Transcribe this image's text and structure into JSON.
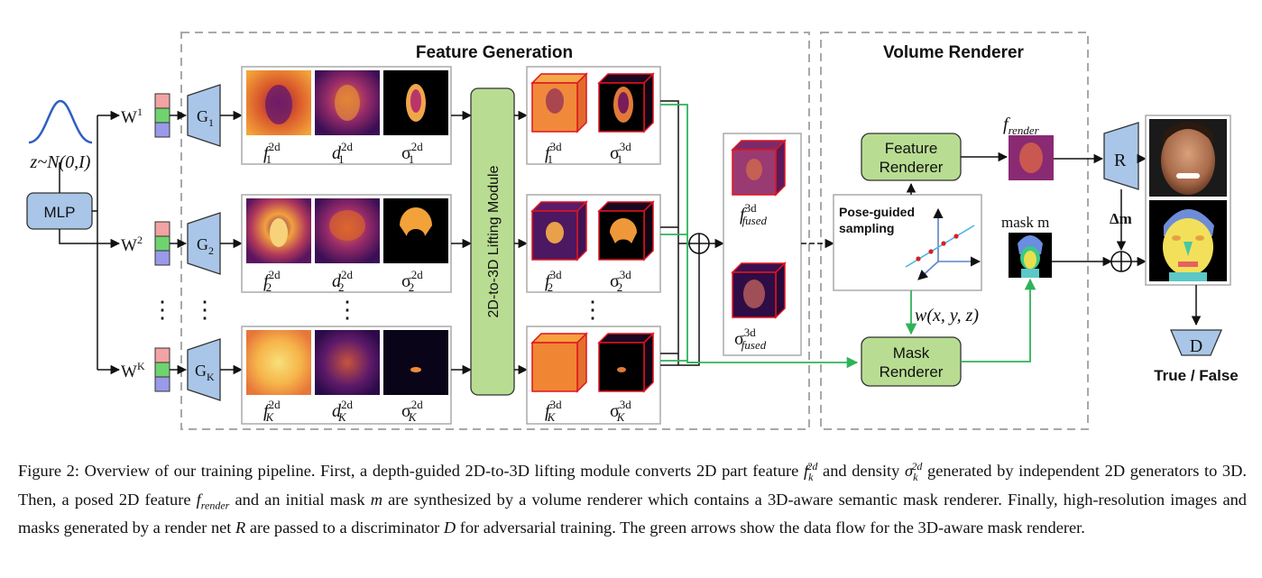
{
  "diagram": {
    "sections": {
      "feature_generation": "Feature Generation",
      "volume_renderer": "Volume Renderer"
    },
    "latent": {
      "distribution": "z~N(0,I)",
      "mlp": "MLP"
    },
    "branches": [
      {
        "w": "W",
        "w_sup": "1",
        "g": "G",
        "g_sub": "1",
        "f_sub": "1",
        "d_sub": "1",
        "s_sub": "1"
      },
      {
        "w": "W",
        "w_sup": "2",
        "g": "G",
        "g_sub": "2",
        "f_sub": "2",
        "d_sub": "2",
        "s_sub": "2"
      },
      {
        "w": "W",
        "w_sup": "K",
        "g": "G",
        "g_sub": "K",
        "f_sub": "K",
        "d_sub": "K",
        "s_sub": "K"
      }
    ],
    "labels": {
      "f": "f",
      "d": "d",
      "sigma": "σ",
      "sup_2d": "2d",
      "sup_3d": "3d",
      "fused": "fused",
      "render": "render",
      "dots": "⋮"
    },
    "lifting_module": "2D-to-3D Lifting Module",
    "feature_renderer": [
      "Feature",
      "Renderer"
    ],
    "mask_renderer": [
      "Mask",
      "Renderer"
    ],
    "pose_sampling": [
      "Pose-guided",
      "sampling"
    ],
    "weight_fn": "w(x, y, z)",
    "mask_label": "mask m",
    "delta_m": "Δm",
    "render_net": "R",
    "discriminator": "D",
    "output": "True / False",
    "colors": {
      "accent_green": "#2fb35a",
      "box_green": "#b8dd92",
      "box_blue": "#a9c6e8",
      "dash_gray": "#a8a8a8",
      "red_edge": "#e0141e"
    }
  },
  "caption": {
    "p1": "Figure 2: Overview of our training pipeline. First, a depth-guided 2D-to-3D lifting module converts 2D part feature ",
    "p1_sym": "f",
    "p1_sub": "k",
    "p1_sup": "2d",
    "p2": " and density ",
    "p2_sym": "σ",
    "p2_sub": "k",
    "p2_sup": "2d",
    "p3": " generated by independent 2D generators to 3D. Then, a posed 2D feature ",
    "p3_sym": "f",
    "p3_sub": "render",
    "p4": " and an initial mask ",
    "p4_sym": "m",
    "p5": " are synthesized by a volume renderer which contains a 3D-aware semantic mask renderer. Finally, high-resolution images and masks generated by a render net ",
    "p5_sym": "R",
    "p6": " are passed to a discriminator ",
    "p6_sym": "D",
    "p7": " for adversarial training. The green arrows show the data flow for the 3D-aware mask renderer."
  }
}
